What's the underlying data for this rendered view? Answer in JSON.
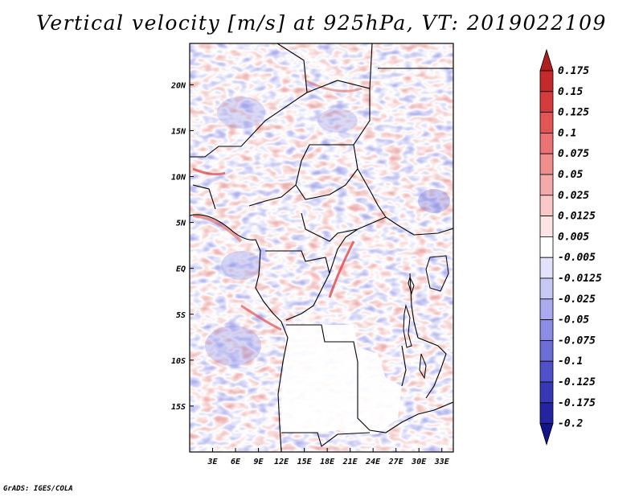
{
  "title": "Vertical velocity [m/s] at 925hPa, VT: 2019022109",
  "credit": "GrADS: IGES/COLA",
  "map": {
    "lon_range": [
      0,
      34.5
    ],
    "lat_range": [
      -20,
      24.5
    ],
    "lon_ticks": [
      {
        "value": 3,
        "label": "3E"
      },
      {
        "value": 6,
        "label": "6E"
      },
      {
        "value": 9,
        "label": "9E"
      },
      {
        "value": 12,
        "label": "12E"
      },
      {
        "value": 15,
        "label": "15E"
      },
      {
        "value": 18,
        "label": "18E"
      },
      {
        "value": 21,
        "label": "21E"
      },
      {
        "value": 24,
        "label": "24E"
      },
      {
        "value": 27,
        "label": "27E"
      },
      {
        "value": 30,
        "label": "30E"
      },
      {
        "value": 33,
        "label": "33E"
      }
    ],
    "lat_ticks": [
      {
        "value": 20,
        "label": "20N"
      },
      {
        "value": 15,
        "label": "15N"
      },
      {
        "value": 10,
        "label": "10N"
      },
      {
        "value": 5,
        "label": "5N"
      },
      {
        "value": 0,
        "label": "EQ"
      },
      {
        "value": -5,
        "label": "5S"
      },
      {
        "value": -10,
        "label": "10S"
      },
      {
        "value": -15,
        "label": "15S"
      }
    ]
  },
  "colorbar": {
    "levels": [
      "0.175",
      "0.15",
      "0.125",
      "0.1",
      "0.075",
      "0.05",
      "0.025",
      "0.0125",
      "0.005",
      "-0.005",
      "-0.0125",
      "-0.025",
      "-0.05",
      "-0.075",
      "-0.1",
      "-0.125",
      "-0.175",
      "-0.2"
    ],
    "colors": [
      "#b01e1e",
      "#c52a2a",
      "#d63b3b",
      "#e25555",
      "#ea7272",
      "#f08e8e",
      "#f5aaaa",
      "#fac8c8",
      "#fde4e4",
      "#ffffff",
      "#e2e2fb",
      "#c8c8f5",
      "#aaaaee",
      "#8c8ce4",
      "#6e6ed8",
      "#5050c8",
      "#3838b4",
      "#2424a0",
      "#14148a"
    ]
  }
}
